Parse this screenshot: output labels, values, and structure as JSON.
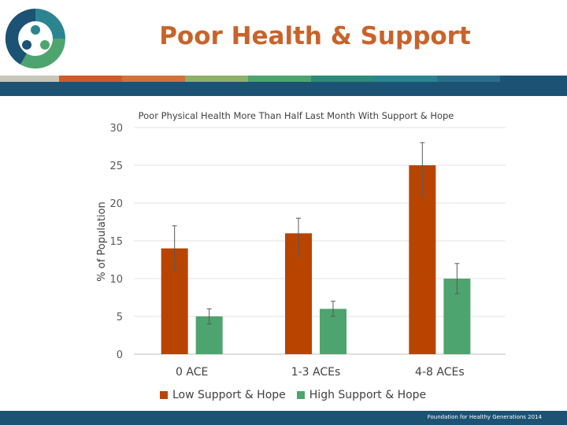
{
  "slide": {
    "title": "Poor Health & Support",
    "footer": "Foundation for Healthy Generations 2014"
  },
  "colors": {
    "title": "#c9632b",
    "band": "#1c5273",
    "low": "#b84400",
    "high": "#4ea46e",
    "stripe": [
      "#c8c6b8",
      "#cf5a2a",
      "#d2713a",
      "#8fb06a",
      "#4ea46e",
      "#2e8a7a",
      "#2b8590",
      "#2a6e8a",
      "#1c5273"
    ]
  },
  "logo": {
    "icon": "three-people-circle-logo-icon"
  },
  "chart_data": {
    "type": "bar",
    "title": "Poor Physical Health More Than Half Last Month With Support & Hope",
    "xlabel": "",
    "ylabel": "% of Population",
    "categories": [
      "0 ACE",
      "1-3 ACEs",
      "4-8 ACEs"
    ],
    "ylim": [
      0,
      30
    ],
    "yticks": [
      0,
      5,
      10,
      15,
      20,
      25,
      30
    ],
    "grid": true,
    "legend_position": "bottom",
    "series": [
      {
        "name": "Low Support & Hope",
        "values": [
          14,
          16,
          25
        ],
        "error_low": [
          11,
          13,
          21
        ],
        "error_high": [
          17,
          18,
          28
        ]
      },
      {
        "name": "High Support & Hope",
        "values": [
          5,
          6,
          10
        ],
        "error_low": [
          4,
          5,
          8
        ],
        "error_high": [
          6,
          7,
          12
        ]
      }
    ]
  }
}
